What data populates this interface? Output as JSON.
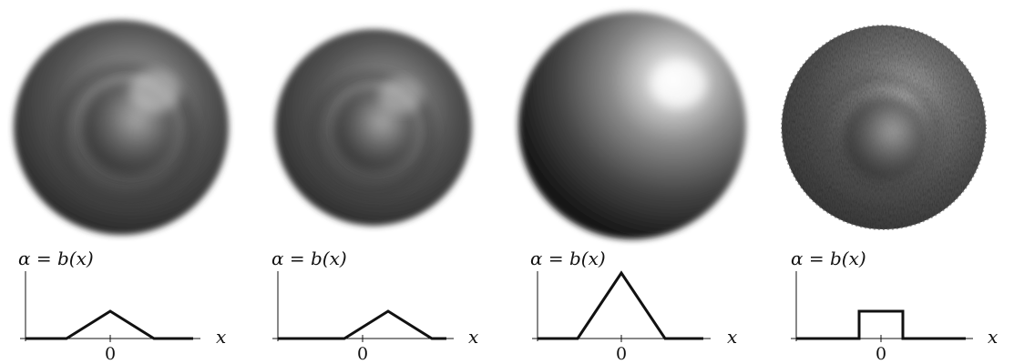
{
  "panels": [
    {
      "y_label": "α = b(x)",
      "x_label": "x",
      "origin_label": "0",
      "kernel": "triangle",
      "peak": 0.3,
      "shading": "ringed-soft"
    },
    {
      "y_label": "α = b(x)",
      "x_label": "x",
      "origin_label": "0",
      "kernel": "triangle",
      "peak": 0.3,
      "shading": "ringed-soft"
    },
    {
      "y_label": "α = b(x)",
      "x_label": "x",
      "origin_label": "0",
      "kernel": "triangle",
      "peak": 0.72,
      "shading": "smooth"
    },
    {
      "y_label": "α = b(x)",
      "x_label": "x",
      "origin_label": "0",
      "kernel": "box",
      "peak": 0.3,
      "shading": "ringed-noisy"
    }
  ]
}
